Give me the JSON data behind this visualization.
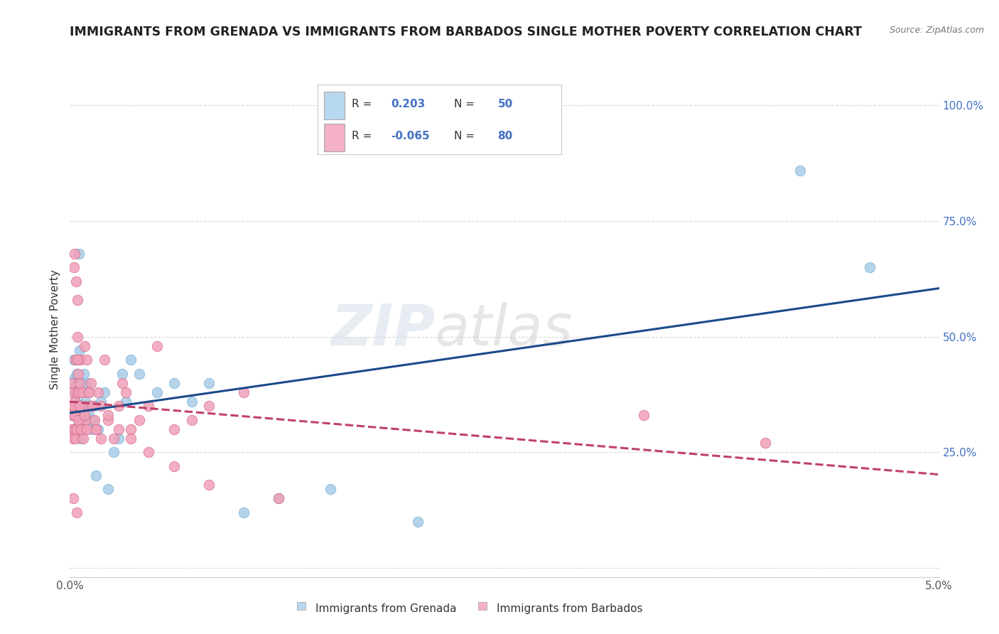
{
  "title": "IMMIGRANTS FROM GRENADA VS IMMIGRANTS FROM BARBADOS SINGLE MOTHER POVERTY CORRELATION CHART",
  "source": "Source: ZipAtlas.com",
  "ylabel": "Single Mother Poverty",
  "xlim": [
    0.0,
    0.05
  ],
  "ylim": [
    -0.02,
    1.05
  ],
  "yticks": [
    0.0,
    0.25,
    0.5,
    0.75,
    1.0
  ],
  "ytick_labels": [
    "",
    "25.0%",
    "50.0%",
    "75.0%",
    "100.0%"
  ],
  "xtick_labels": [
    "0.0%",
    "",
    "",
    "",
    "",
    "5.0%"
  ],
  "background_color": "#ffffff",
  "grid_color": "#d0d0d0",
  "watermark_text": "ZIPatlas",
  "series": [
    {
      "name": "Immigrants from Grenada",
      "color": "#a8cce8",
      "edge_color": "#6baad0",
      "R": 0.203,
      "N": 50,
      "x": [
        0.00015,
        0.00018,
        0.0002,
        0.00022,
        0.00025,
        0.00028,
        0.0003,
        0.00032,
        0.00035,
        0.00038,
        0.0004,
        0.00042,
        0.00045,
        0.00048,
        0.0005,
        0.00055,
        0.0006,
        0.00065,
        0.0007,
        0.00075,
        0.0008,
        0.00085,
        0.0009,
        0.00095,
        0.001,
        0.0011,
        0.0012,
        0.0013,
        0.0014,
        0.0015,
        0.0016,
        0.0018,
        0.002,
        0.0022,
        0.0025,
        0.0028,
        0.003,
        0.0032,
        0.0035,
        0.004,
        0.005,
        0.006,
        0.007,
        0.008,
        0.01,
        0.012,
        0.015,
        0.02,
        0.042,
        0.046
      ],
      "y": [
        0.33,
        0.3,
        0.35,
        0.45,
        0.38,
        0.41,
        0.4,
        0.36,
        0.3,
        0.33,
        0.42,
        0.35,
        0.38,
        0.32,
        0.68,
        0.47,
        0.32,
        0.28,
        0.4,
        0.35,
        0.42,
        0.32,
        0.36,
        0.4,
        0.35,
        0.33,
        0.3,
        0.32,
        0.35,
        0.2,
        0.3,
        0.36,
        0.38,
        0.17,
        0.25,
        0.28,
        0.42,
        0.36,
        0.45,
        0.42,
        0.38,
        0.4,
        0.36,
        0.4,
        0.12,
        0.15,
        0.17,
        0.1,
        0.86,
        0.65
      ]
    },
    {
      "name": "Immigrants from Barbados",
      "color": "#f0a0b8",
      "edge_color": "#d06080",
      "R": -0.065,
      "N": 80,
      "x": [
        0.0001,
        0.00012,
        0.00015,
        0.00018,
        0.0002,
        0.00022,
        0.00025,
        0.00028,
        0.0003,
        0.00032,
        0.00035,
        0.00038,
        0.0004,
        0.00042,
        0.00045,
        0.00048,
        0.0005,
        0.00052,
        0.00055,
        0.00058,
        0.0006,
        0.00065,
        0.0007,
        0.00075,
        0.0008,
        0.00085,
        0.0009,
        0.00095,
        0.001,
        0.0011,
        0.0012,
        0.0013,
        0.0014,
        0.0015,
        0.0016,
        0.0018,
        0.002,
        0.0022,
        0.0025,
        0.0028,
        0.003,
        0.0032,
        0.0035,
        0.004,
        0.0045,
        0.005,
        0.006,
        0.007,
        0.008,
        0.01,
        0.00012,
        0.00015,
        0.00018,
        0.00022,
        0.00025,
        0.00028,
        0.00032,
        0.00038,
        0.00042,
        0.00048,
        0.00055,
        0.00065,
        0.00075,
        0.00085,
        0.00095,
        0.0011,
        0.0013,
        0.0015,
        0.0018,
        0.0022,
        0.0028,
        0.0035,
        0.0045,
        0.006,
        0.008,
        0.012,
        0.033,
        0.04,
        0.0002,
        0.0004
      ],
      "y": [
        0.35,
        0.4,
        0.38,
        0.33,
        0.3,
        0.65,
        0.68,
        0.36,
        0.3,
        0.45,
        0.62,
        0.35,
        0.38,
        0.5,
        0.58,
        0.42,
        0.35,
        0.38,
        0.4,
        0.32,
        0.45,
        0.35,
        0.38,
        0.3,
        0.33,
        0.48,
        0.32,
        0.45,
        0.35,
        0.38,
        0.4,
        0.35,
        0.32,
        0.3,
        0.38,
        0.35,
        0.45,
        0.32,
        0.28,
        0.35,
        0.4,
        0.38,
        0.3,
        0.32,
        0.35,
        0.48,
        0.3,
        0.32,
        0.35,
        0.38,
        0.3,
        0.33,
        0.28,
        0.35,
        0.3,
        0.33,
        0.28,
        0.3,
        0.45,
        0.32,
        0.35,
        0.3,
        0.28,
        0.33,
        0.3,
        0.38,
        0.35,
        0.3,
        0.28,
        0.33,
        0.3,
        0.28,
        0.25,
        0.22,
        0.18,
        0.15,
        0.33,
        0.27,
        0.15,
        0.12
      ]
    }
  ],
  "legend_box_colors": [
    "#b8d8f0",
    "#f4b0c8"
  ],
  "trendline_colors": [
    "#1a4a8a",
    "#c0406a"
  ],
  "trendline_styles": [
    "-",
    "--"
  ]
}
